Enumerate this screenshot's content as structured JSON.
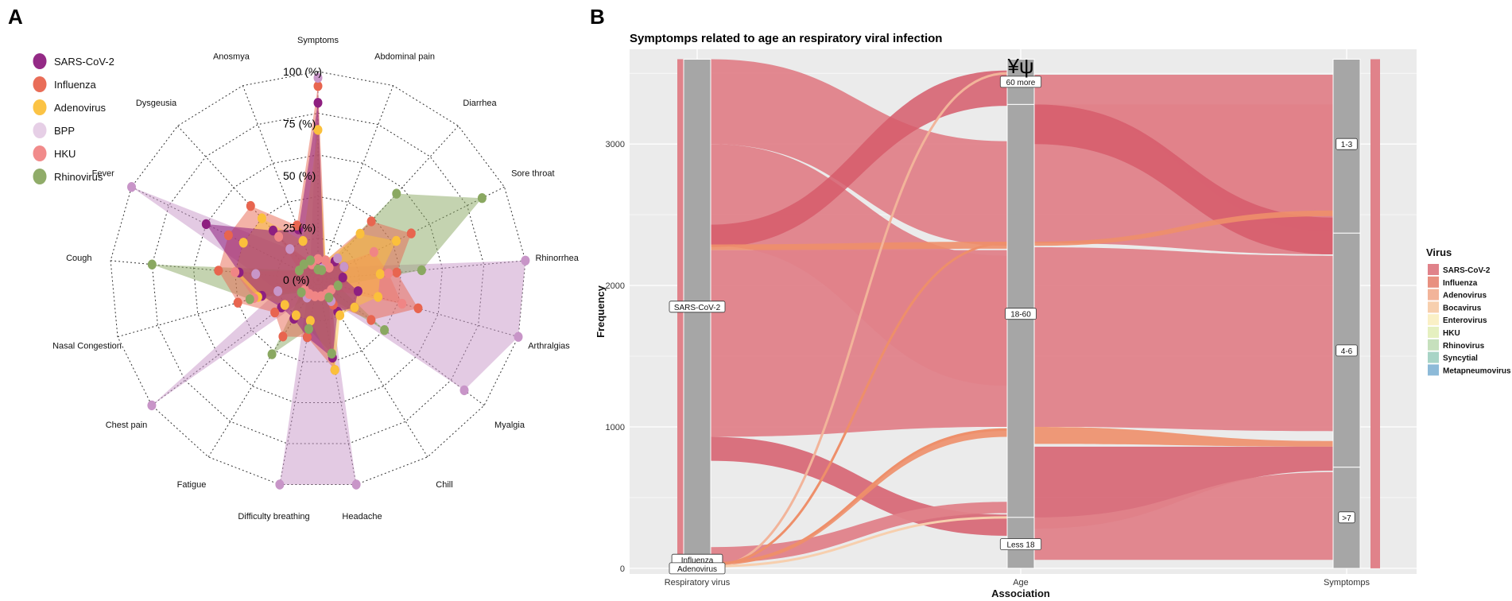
{
  "chart_data": [
    {
      "panel": "A",
      "type": "radar",
      "legend": [
        "SARS-CoV-2",
        "Influenza",
        "Adenovirus",
        "BPP",
        "HKU",
        "Rhinovirus"
      ],
      "radial_labels": [
        "100 (%)",
        "75 (%)",
        "50 (%)",
        "25 (%)",
        "0 (%)"
      ],
      "axes": [
        "Symptoms",
        "Abdominal pain",
        "Diarrhea",
        "Sore throat",
        "Rhinorrhea",
        "Arthralgias",
        "Myalgia",
        "Chill",
        "Headache",
        "Difficulty breathing",
        "Fatigue",
        "Chest pain",
        "Nasal Congestion",
        "Cough",
        "Fever",
        "Dysgeusia",
        "Anosmya"
      ],
      "rmax": 100,
      "series": [
        {
          "name": "SARS-CoV-2",
          "color": "#8e1f80",
          "values": [
            85,
            8,
            12,
            14,
            12,
            20,
            22,
            18,
            38,
            28,
            22,
            22,
            28,
            38,
            60,
            32,
            26
          ]
        },
        {
          "name": "Influenza",
          "color": "#e8654f",
          "values": [
            93,
            10,
            38,
            50,
            38,
            50,
            32,
            14,
            44,
            28,
            32,
            26,
            40,
            48,
            48,
            48,
            28
          ]
        },
        {
          "name": "Adenovirus",
          "color": "#fbc03b",
          "values": [
            72,
            10,
            30,
            42,
            30,
            30,
            22,
            20,
            44,
            20,
            20,
            20,
            30,
            40,
            40,
            40,
            20
          ]
        },
        {
          "name": "BPP",
          "color": "#c895c8",
          "values": [
            97,
            6,
            14,
            14,
            100,
            100,
            88,
            12,
            100,
            100,
            10,
            100,
            20,
            30,
            100,
            20,
            10
          ]
        },
        {
          "name": "HKU",
          "color": "#f08585",
          "values": [
            10,
            10,
            8,
            30,
            34,
            42,
            8,
            8,
            8,
            8,
            8,
            8,
            32,
            40,
            10,
            28,
            8
          ]
        },
        {
          "name": "Rhinovirus",
          "color": "#8aa861",
          "values": [
            5,
            5,
            56,
            88,
            50,
            10,
            40,
            10,
            36,
            24,
            42,
            10,
            34,
            80,
            10,
            10,
            10
          ]
        }
      ]
    },
    {
      "panel": "B",
      "type": "alluvial",
      "title": "Symptomps related to age an respiratory viral infection",
      "xlabel": "Association",
      "ylabel": "Frequency",
      "x_categories": [
        "Respiratory virus",
        "Age",
        "Symptomps"
      ],
      "y_ticks": [
        0,
        1000,
        2000,
        3000
      ],
      "ylim": [
        -40,
        3670
      ],
      "annotation": "¥ψ",
      "legend_title": "Virus",
      "legend": [
        {
          "name": "SARS-CoV-2",
          "color": "#e0828a"
        },
        {
          "name": "Influenza",
          "color": "#e89080"
        },
        {
          "name": "Adenovirus",
          "color": "#f2b49a"
        },
        {
          "name": "Bocavirus",
          "color": "#f7cfae"
        },
        {
          "name": "Enterovirus",
          "color": "#faf0c6"
        },
        {
          "name": "HKU",
          "color": "#e5f0c0"
        },
        {
          "name": "Rhinovirus",
          "color": "#c6e0bd"
        },
        {
          "name": "Syncytial",
          "color": "#a8d4c6"
        },
        {
          "name": "Metapneumovirus",
          "color": "#8dbad8"
        }
      ],
      "strata": {
        "virus": [
          {
            "label": "SARS-CoV-2",
            "from": 70,
            "to": 3600,
            "label_y": 1850
          },
          {
            "label": "Influenza",
            "from": 30,
            "to": 70,
            "label_y": 60
          },
          {
            "label": "Adenovirus",
            "from": 0,
            "to": 30,
            "label_y": 0
          }
        ],
        "age": [
          {
            "label": "60 more",
            "from": 3280,
            "to": 3600,
            "label_y": 3440
          },
          {
            "label": "18-60",
            "from": 360,
            "to": 3280,
            "label_y": 1800
          },
          {
            "label": "Less 18",
            "from": 0,
            "to": 360,
            "label_y": 170
          }
        ],
        "symptoms": [
          {
            "label": "1-3",
            "from": 2370,
            "to": 3600,
            "label_y": 3000
          },
          {
            "label": "4-6",
            "from": 715,
            "to": 2370,
            "label_y": 1540
          },
          {
            "label": ">7",
            "from": 0,
            "to": 715,
            "label_y": 360
          }
        ]
      },
      "flows_left": [
        {
          "from": 3000,
          "to": 3600,
          "ato": 2280,
          "bto": 3020,
          "band": "main"
        },
        {
          "from": 2280,
          "to": 3000,
          "ato": 1290,
          "bto": 2210,
          "band": "main"
        },
        {
          "from": 2270,
          "to": 2430,
          "ato": 3270,
          "bto": 3520,
          "band": "dark"
        },
        {
          "from": 2250,
          "to": 2290,
          "ato": 2260,
          "bto": 2310,
          "band": "orange"
        },
        {
          "from": 930,
          "to": 2250,
          "ato": 1000,
          "bto": 2250,
          "band": "main"
        },
        {
          "from": 760,
          "to": 930,
          "ato": 230,
          "bto": 380,
          "band": "dark"
        },
        {
          "from": 40,
          "to": 150,
          "ato": 390,
          "bto": 470,
          "band": "mainwide"
        },
        {
          "from": 150,
          "to": 760,
          "ato": 1000,
          "bto": 1040,
          "band": "skip"
        },
        {
          "from": 20,
          "to": 40,
          "ato": 930,
          "bto": 990,
          "band": "orange"
        }
      ],
      "flows_right": [
        {
          "from": 3280,
          "to": 3490,
          "bfrom": 2380,
          "bto": 3490,
          "band": "main"
        },
        {
          "from": 2300,
          "to": 3280,
          "bfrom": 2220,
          "bto": 3280,
          "band": "main"
        },
        {
          "from": 3000,
          "to": 3280,
          "bfrom": 2220,
          "bto": 2480,
          "band": "dark"
        },
        {
          "from": 2280,
          "to": 2310,
          "bfrom": 2490,
          "bto": 2530,
          "band": "orange"
        },
        {
          "from": 1000,
          "to": 2270,
          "bfrom": 970,
          "bto": 2210,
          "band": "main"
        },
        {
          "from": 880,
          "to": 1000,
          "bfrom": 860,
          "bto": 900,
          "band": "orange"
        },
        {
          "from": 280,
          "to": 860,
          "bfrom": 690,
          "bto": 860,
          "band": "dark"
        },
        {
          "from": 60,
          "to": 360,
          "bfrom": 60,
          "bto": 680,
          "band": "main"
        }
      ]
    }
  ]
}
